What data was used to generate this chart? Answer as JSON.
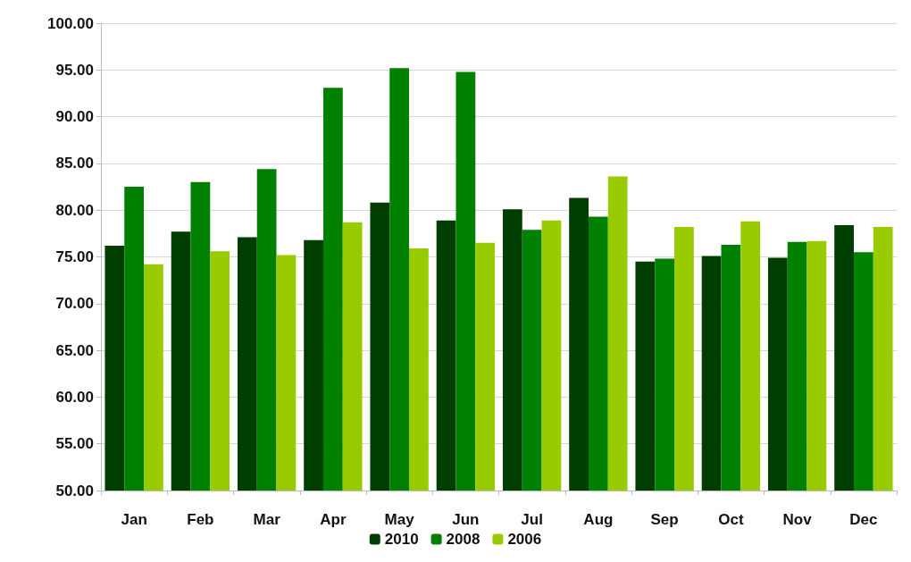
{
  "chart_data": {
    "type": "bar",
    "categories": [
      "Jan",
      "Feb",
      "Mar",
      "Apr",
      "May",
      "Jun",
      "Jul",
      "Aug",
      "Sep",
      "Oct",
      "Nov",
      "Dec"
    ],
    "series": [
      {
        "name": "2010",
        "color": "#003d00",
        "values": [
          76.2,
          77.7,
          77.1,
          76.8,
          80.8,
          78.9,
          80.1,
          81.3,
          74.5,
          75.1,
          74.9,
          78.4
        ]
      },
      {
        "name": "2008",
        "color": "#008000",
        "values": [
          82.5,
          83.0,
          84.4,
          93.1,
          95.2,
          94.8,
          77.9,
          79.3,
          74.8,
          76.3,
          76.6,
          75.5
        ]
      },
      {
        "name": "2006",
        "color": "#99cc00",
        "values": [
          74.2,
          75.6,
          75.2,
          78.7,
          75.9,
          76.5,
          78.9,
          83.6,
          78.2,
          78.8,
          76.7,
          78.2
        ]
      }
    ],
    "ylim": [
      50,
      100
    ],
    "yticks": [
      {
        "value": 50,
        "label": "50.00"
      },
      {
        "value": 55,
        "label": "55.00"
      },
      {
        "value": 60,
        "label": "60.00"
      },
      {
        "value": 65,
        "label": "65.00"
      },
      {
        "value": 70,
        "label": "70.00"
      },
      {
        "value": 75,
        "label": "75.00"
      },
      {
        "value": 80,
        "label": "80.00"
      },
      {
        "value": 85,
        "label": "85.00"
      },
      {
        "value": 90,
        "label": "90.00"
      },
      {
        "value": 95,
        "label": "95.00"
      },
      {
        "value": 100,
        "label": "100.00"
      }
    ],
    "grid": "y",
    "legend": "bottom"
  }
}
